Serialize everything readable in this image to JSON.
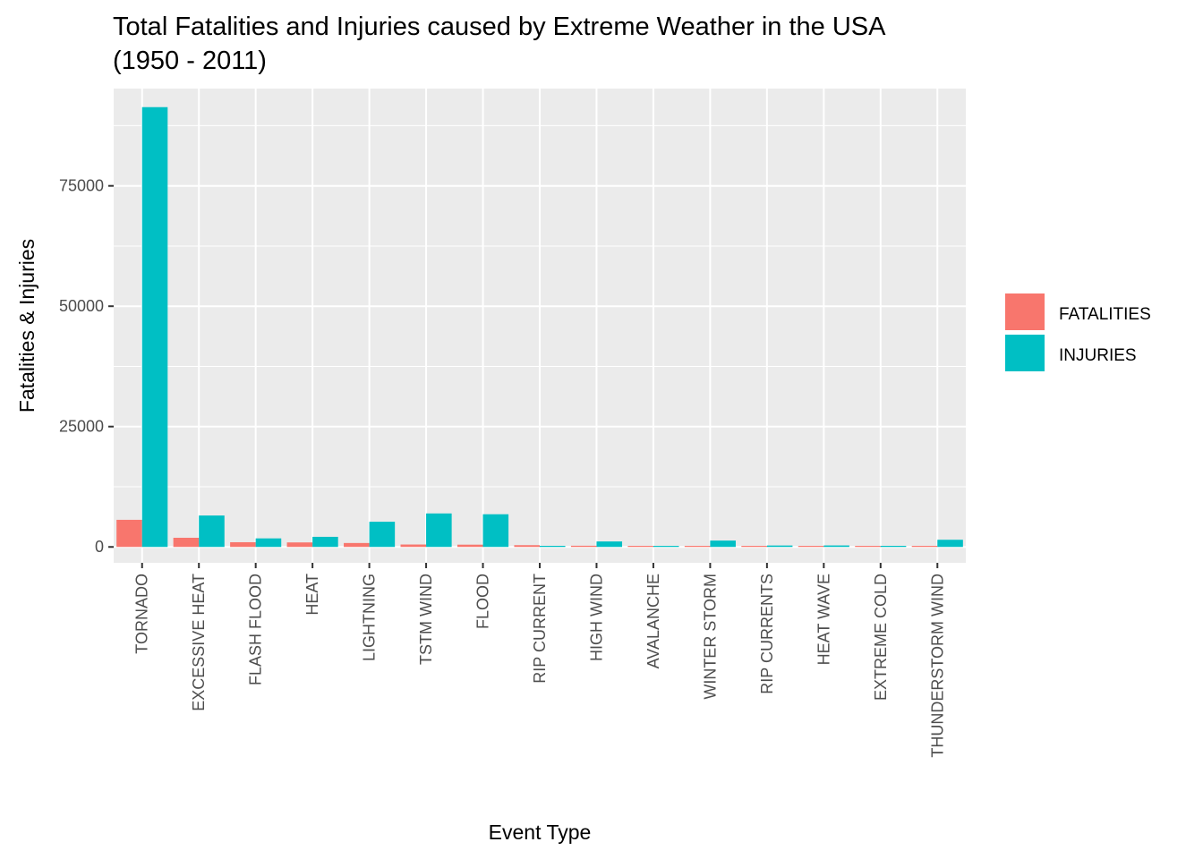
{
  "chart_data": {
    "type": "bar",
    "title_lines": [
      "Total Fatalities and Injuries caused by Extreme Weather in the USA",
      "(1950 - 2011)"
    ],
    "xlabel": "Event Type",
    "ylabel": "Fatalities & Injuries",
    "ylim": [
      -3300,
      95200
    ],
    "yticks": [
      0,
      25000,
      50000,
      75000
    ],
    "ytick_labels": [
      "0",
      "25000",
      "50000",
      "75000"
    ],
    "grid": true,
    "legend_position": "right",
    "categories": [
      "TORNADO",
      "EXCESSIVE HEAT",
      "FLASH FLOOD",
      "HEAT",
      "LIGHTNING",
      "TSTM WIND",
      "FLOOD",
      "RIP CURRENT",
      "HIGH WIND",
      "AVALANCHE",
      "WINTER STORM",
      "RIP CURRENTS",
      "HEAT WAVE",
      "EXTREME COLD",
      "THUNDERSTORM WIND"
    ],
    "series": [
      {
        "name": "FATALITIES",
        "color": "#F8766D",
        "values": [
          5633,
          1903,
          978,
          937,
          816,
          504,
          470,
          368,
          248,
          224,
          206,
          204,
          172,
          160,
          133
        ]
      },
      {
        "name": "INJURIES",
        "color": "#00BFC4",
        "values": [
          91346,
          6525,
          1777,
          2100,
          5230,
          6957,
          6789,
          232,
          1137,
          170,
          1321,
          297,
          309,
          231,
          1488
        ]
      }
    ]
  }
}
